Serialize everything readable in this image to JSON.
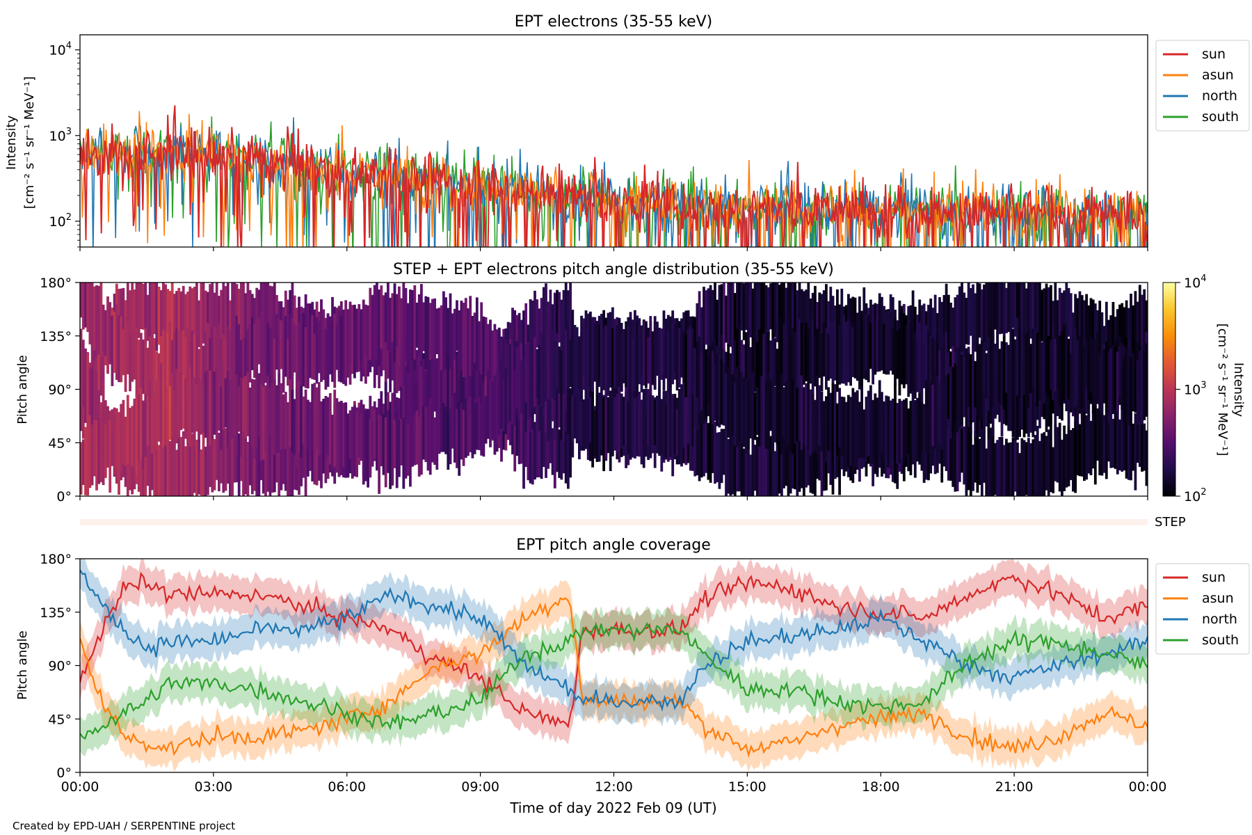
{
  "colors": {
    "sun": "#d62728",
    "asun": "#ff7f0e",
    "north": "#1f77b4",
    "south": "#2ca02c",
    "step_bar": "#fdf1ec",
    "colormap": [
      "#000004",
      "#1f0c48",
      "#550f6d",
      "#88226a",
      "#ba3655",
      "#e35933",
      "#f98e09",
      "#fac62d",
      "#fcffa4"
    ]
  },
  "footer": "Created by EPD-UAH / SERPENTINE project",
  "shared_axis": {
    "xlabel": "Time of day 2022 Feb 09 (UT)",
    "xticks": [
      "00:00",
      "03:00",
      "06:00",
      "09:00",
      "12:00",
      "15:00",
      "18:00",
      "21:00",
      "00:00"
    ],
    "xrange_hours": [
      0,
      24
    ]
  },
  "chart_data": [
    {
      "type": "line",
      "title": "EPT electrons (35-55 keV)",
      "ylabel_line1": "Intensity",
      "ylabel_line2": "[cm⁻² s⁻¹ sr⁻¹ MeV⁻¹]",
      "yscale": "log",
      "ylim": [
        50,
        15000
      ],
      "yticks": [
        {
          "label": "10",
          "exp": "2",
          "value": 100
        },
        {
          "label": "10",
          "exp": "3",
          "value": 1000
        },
        {
          "label": "10",
          "exp": "4",
          "value": 10000
        }
      ],
      "legend_location": "outside-top-right",
      "series": [
        {
          "name": "sun",
          "color": "#d62728"
        },
        {
          "name": "asun",
          "color": "#ff7f0e"
        },
        {
          "name": "north",
          "color": "#1f77b4"
        },
        {
          "name": "south",
          "color": "#2ca02c"
        }
      ],
      "trend": {
        "x": [
          0,
          1,
          2,
          3,
          4,
          5,
          6,
          7,
          8,
          9,
          10,
          11,
          12,
          14,
          16,
          18,
          20,
          22,
          24
        ],
        "y": [
          550,
          600,
          650,
          620,
          520,
          450,
          380,
          340,
          300,
          260,
          220,
          190,
          170,
          150,
          145,
          140,
          130,
          125,
          120
        ]
      }
    },
    {
      "type": "heatmap",
      "title": "STEP + EPT electrons pitch angle distribution (35-55 keV)",
      "ylabel": "Pitch angle",
      "yticks": [
        "0°",
        "45°",
        "90°",
        "135°",
        "180°"
      ],
      "ylim": [
        0,
        180
      ],
      "colorbar": {
        "label": "Intensity",
        "units": "[cm⁻² s⁻¹ sr⁻¹ MeV⁻¹]",
        "scale": "log",
        "range": [
          100,
          10000
        ],
        "ticks": [
          {
            "label": "10",
            "exp": "2"
          },
          {
            "label": "10",
            "exp": "3"
          },
          {
            "label": "10",
            "exp": "4"
          }
        ]
      },
      "intensity_trend": {
        "x": [
          0,
          2,
          3,
          4,
          6,
          8,
          10,
          11,
          13,
          14,
          16,
          18,
          20,
          24
        ],
        "y": [
          700,
          850,
          600,
          450,
          380,
          320,
          260,
          180,
          170,
          150,
          140,
          150,
          140,
          130
        ]
      }
    },
    {
      "type": "line",
      "title": "EPT pitch angle coverage",
      "ylabel": "Pitch angle",
      "yticks": [
        "0°",
        "45°",
        "90°",
        "135°",
        "180°"
      ],
      "ylim": [
        0,
        180
      ],
      "step_label": "STEP",
      "legend_location": "outside-top-right",
      "series": [
        {
          "name": "sun",
          "color": "#d62728",
          "x": [
            0,
            0.5,
            1,
            1.5,
            2,
            3,
            4,
            5,
            6,
            7,
            8,
            9,
            10,
            11,
            11.3,
            12,
            13,
            13.5,
            14,
            15,
            16,
            17,
            18,
            19,
            20,
            21,
            22,
            23,
            24
          ],
          "y": [
            80,
            120,
            155,
            160,
            150,
            150,
            150,
            140,
            130,
            120,
            95,
            80,
            50,
            40,
            120,
            120,
            120,
            120,
            145,
            160,
            155,
            140,
            135,
            130,
            150,
            165,
            150,
            130,
            140
          ]
        },
        {
          "name": "asun",
          "color": "#ff7f0e",
          "x": [
            0,
            0.5,
            1,
            1.5,
            2,
            3,
            4,
            5,
            6,
            7,
            8,
            9,
            10,
            11,
            11.3,
            12,
            13,
            13.5,
            14,
            15,
            16,
            17,
            18,
            19,
            20,
            21,
            22,
            23,
            24
          ],
          "y": [
            110,
            60,
            30,
            25,
            20,
            30,
            30,
            35,
            45,
            60,
            90,
            100,
            130,
            150,
            60,
            60,
            60,
            60,
            40,
            20,
            25,
            40,
            45,
            50,
            30,
            20,
            30,
            50,
            40
          ]
        },
        {
          "name": "north",
          "color": "#1f77b4",
          "x": [
            0,
            0.5,
            1,
            1.5,
            2,
            3,
            4,
            5,
            6,
            7,
            8,
            9,
            10,
            11,
            11.3,
            12,
            13,
            13.5,
            14,
            15,
            16,
            17,
            18,
            19,
            20,
            21,
            22,
            23,
            24
          ],
          "y": [
            170,
            140,
            120,
            105,
            110,
            110,
            120,
            120,
            130,
            150,
            140,
            130,
            90,
            70,
            60,
            60,
            60,
            60,
            90,
            110,
            115,
            120,
            130,
            110,
            90,
            80,
            90,
            100,
            110
          ]
        },
        {
          "name": "south",
          "color": "#2ca02c",
          "x": [
            0,
            0.5,
            1,
            1.5,
            2,
            3,
            4,
            5,
            6,
            7,
            8,
            9,
            10,
            11,
            11.3,
            12,
            13,
            13.5,
            14,
            15,
            16,
            17,
            18,
            19,
            20,
            21,
            22,
            23,
            24
          ],
          "y": [
            30,
            40,
            50,
            60,
            75,
            75,
            70,
            60,
            50,
            40,
            50,
            60,
            100,
            110,
            120,
            120,
            120,
            120,
            100,
            70,
            70,
            60,
            55,
            60,
            95,
            110,
            110,
            100,
            90
          ]
        }
      ]
    }
  ]
}
